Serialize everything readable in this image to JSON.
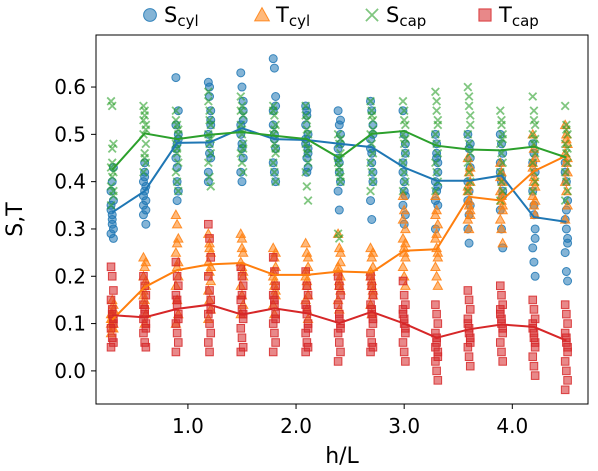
{
  "chart_data": {
    "type": "scatter",
    "xlabel": "h/L",
    "ylabel": "S,T",
    "xlim": [
      0.15,
      4.7
    ],
    "ylim": [
      -0.07,
      0.71
    ],
    "xticks": [
      1.0,
      2.0,
      3.0,
      4.0
    ],
    "xtick_labels": [
      "1.0",
      "2.0",
      "3.0",
      "4.0"
    ],
    "yticks": [
      0.0,
      0.1,
      0.2,
      0.3,
      0.4,
      0.5,
      0.6
    ],
    "ytick_labels": [
      "0.0",
      "0.1",
      "0.2",
      "0.3",
      "0.4",
      "0.5",
      "0.6"
    ],
    "grid": false,
    "legend": "top, outside plot, single row",
    "x": [
      0.3,
      0.6,
      0.9,
      1.2,
      1.5,
      1.8,
      2.1,
      2.4,
      2.7,
      3.0,
      3.3,
      3.6,
      3.9,
      4.2,
      4.5
    ],
    "series": [
      {
        "key": "scyl",
        "legend_main": "S",
        "legend_sub": "cyl",
        "marker": "circle",
        "color": "#1f77b4",
        "mean": [
          0.335,
          0.38,
          0.482,
          0.483,
          0.513,
          0.49,
          0.488,
          0.48,
          0.473,
          0.43,
          0.402,
          0.402,
          0.413,
          0.325,
          0.315
        ],
        "points": [
          [
            0.34,
            0.33,
            0.3,
            0.29,
            0.32,
            0.36,
            0.38,
            0.31,
            0.28,
            0.35,
            0.4,
            0.43
          ],
          [
            0.4,
            0.38,
            0.36,
            0.35,
            0.42,
            0.31,
            0.33,
            0.44,
            0.39,
            0.37,
            0.41,
            0.34
          ],
          [
            0.62,
            0.48,
            0.5,
            0.45,
            0.4,
            0.38,
            0.52,
            0.36,
            0.55,
            0.47,
            0.43,
            0.49
          ],
          [
            0.61,
            0.6,
            0.55,
            0.5,
            0.48,
            0.45,
            0.42,
            0.58,
            0.52,
            0.4,
            0.46,
            0.53
          ],
          [
            0.63,
            0.6,
            0.55,
            0.52,
            0.48,
            0.45,
            0.42,
            0.4,
            0.57,
            0.5,
            0.47,
            0.53
          ],
          [
            0.66,
            0.64,
            0.58,
            0.55,
            0.5,
            0.47,
            0.44,
            0.42,
            0.4,
            0.52,
            0.49,
            0.56
          ],
          [
            0.56,
            0.55,
            0.5,
            0.48,
            0.45,
            0.43,
            0.52,
            0.42,
            0.47,
            0.49,
            0.54,
            0.46
          ],
          [
            0.55,
            0.52,
            0.48,
            0.45,
            0.42,
            0.4,
            0.38,
            0.34,
            0.5,
            0.47,
            0.44,
            0.53
          ],
          [
            0.57,
            0.55,
            0.5,
            0.47,
            0.44,
            0.4,
            0.36,
            0.32,
            0.52,
            0.49,
            0.46,
            0.42
          ],
          [
            0.55,
            0.5,
            0.46,
            0.42,
            0.4,
            0.37,
            0.35,
            0.31,
            0.48,
            0.44,
            0.38,
            0.33
          ],
          [
            0.5,
            0.46,
            0.44,
            0.4,
            0.38,
            0.35,
            0.3,
            0.48,
            0.42,
            0.36,
            0.45,
            0.39
          ],
          [
            0.5,
            0.47,
            0.45,
            0.4,
            0.38,
            0.35,
            0.3,
            0.27,
            0.43,
            0.36,
            0.33,
            0.48
          ],
          [
            0.5,
            0.48,
            0.46,
            0.42,
            0.4,
            0.38,
            0.34,
            0.3,
            0.26,
            0.44,
            0.41,
            0.37
          ],
          [
            0.48,
            0.46,
            0.42,
            0.38,
            0.35,
            0.3,
            0.26,
            0.23,
            0.2,
            0.44,
            0.33,
            0.28
          ],
          [
            0.44,
            0.4,
            0.36,
            0.32,
            0.3,
            0.28,
            0.25,
            0.21,
            0.19,
            0.42,
            0.34,
            0.27
          ]
        ]
      },
      {
        "key": "tcyl",
        "legend_main": "T",
        "legend_sub": "cyl",
        "marker": "triangle",
        "color": "#ff7f0e",
        "mean": [
          0.108,
          0.177,
          0.213,
          0.225,
          0.228,
          0.203,
          0.203,
          0.21,
          0.208,
          0.254,
          0.257,
          0.368,
          0.36,
          0.422,
          0.455
        ],
        "points": [
          [
            0.1,
            0.12,
            0.14,
            0.11,
            0.09,
            0.13,
            0.08,
            0.15,
            0.1,
            0.12,
            0.11,
            0.09
          ],
          [
            0.24,
            0.22,
            0.18,
            0.16,
            0.14,
            0.12,
            0.2,
            0.1,
            0.23,
            0.17,
            0.15,
            0.19
          ],
          [
            0.33,
            0.31,
            0.28,
            0.25,
            0.22,
            0.2,
            0.18,
            0.15,
            0.12,
            0.1,
            0.27,
            0.23
          ],
          [
            0.29,
            0.27,
            0.25,
            0.23,
            0.21,
            0.19,
            0.17,
            0.15,
            0.13,
            0.11,
            0.26,
            0.22
          ],
          [
            0.29,
            0.28,
            0.25,
            0.23,
            0.22,
            0.2,
            0.18,
            0.16,
            0.14,
            0.12,
            0.26,
            0.21
          ],
          [
            0.26,
            0.24,
            0.22,
            0.2,
            0.18,
            0.16,
            0.14,
            0.12,
            0.25,
            0.21,
            0.19,
            0.17
          ],
          [
            0.27,
            0.25,
            0.22,
            0.2,
            0.18,
            0.16,
            0.15,
            0.13,
            0.24,
            0.21,
            0.19,
            0.11
          ],
          [
            0.29,
            0.26,
            0.23,
            0.21,
            0.19,
            0.17,
            0.15,
            0.13,
            0.25,
            0.22,
            0.18,
            0.2
          ],
          [
            0.26,
            0.24,
            0.22,
            0.2,
            0.18,
            0.16,
            0.14,
            0.12,
            0.25,
            0.21,
            0.19,
            0.17
          ],
          [
            0.37,
            0.34,
            0.3,
            0.28,
            0.26,
            0.24,
            0.22,
            0.2,
            0.18,
            0.32,
            0.25,
            0.27
          ],
          [
            0.37,
            0.34,
            0.31,
            0.28,
            0.26,
            0.24,
            0.22,
            0.2,
            0.18,
            0.33,
            0.29,
            0.25
          ],
          [
            0.45,
            0.42,
            0.4,
            0.38,
            0.36,
            0.34,
            0.32,
            0.3,
            0.43,
            0.39,
            0.35,
            0.33
          ],
          [
            0.44,
            0.42,
            0.4,
            0.38,
            0.36,
            0.34,
            0.32,
            0.3,
            0.27,
            0.41,
            0.37,
            0.35
          ],
          [
            0.5,
            0.47,
            0.45,
            0.43,
            0.41,
            0.39,
            0.37,
            0.35,
            0.33,
            0.44,
            0.4,
            0.36
          ],
          [
            0.52,
            0.5,
            0.48,
            0.46,
            0.44,
            0.42,
            0.4,
            0.38,
            0.35,
            0.32,
            0.49,
            0.45
          ]
        ]
      },
      {
        "key": "scap",
        "legend_main": "S",
        "legend_sub": "cap",
        "marker": "x",
        "color": "#2ca02c",
        "mean": [
          0.425,
          0.502,
          0.49,
          0.499,
          0.505,
          0.497,
          0.49,
          0.45,
          0.501,
          0.507,
          0.476,
          0.468,
          0.466,
          0.474,
          0.451
        ],
        "points": [
          [
            0.57,
            0.56,
            0.48,
            0.43,
            0.41,
            0.38,
            0.35,
            0.47,
            0.42,
            0.39,
            0.44,
            0.37
          ],
          [
            0.56,
            0.55,
            0.52,
            0.5,
            0.46,
            0.44,
            0.42,
            0.54,
            0.48,
            0.53,
            0.45,
            0.51
          ],
          [
            0.55,
            0.52,
            0.5,
            0.48,
            0.46,
            0.44,
            0.42,
            0.4,
            0.38,
            0.53,
            0.47,
            0.51
          ],
          [
            0.59,
            0.55,
            0.52,
            0.5,
            0.48,
            0.46,
            0.44,
            0.41,
            0.39,
            0.57,
            0.53,
            0.49
          ],
          [
            0.58,
            0.56,
            0.54,
            0.52,
            0.5,
            0.48,
            0.46,
            0.44,
            0.42,
            0.55,
            0.51,
            0.47
          ],
          [
            0.56,
            0.54,
            0.52,
            0.5,
            0.48,
            0.46,
            0.44,
            0.42,
            0.4,
            0.55,
            0.51,
            0.47
          ],
          [
            0.56,
            0.53,
            0.5,
            0.48,
            0.46,
            0.44,
            0.42,
            0.39,
            0.36,
            0.54,
            0.51,
            0.47
          ],
          [
            0.5,
            0.48,
            0.46,
            0.44,
            0.42,
            0.4,
            0.29,
            0.28,
            0.49,
            0.45,
            0.43,
            0.41
          ],
          [
            0.57,
            0.55,
            0.53,
            0.5,
            0.48,
            0.46,
            0.44,
            0.42,
            0.4,
            0.38,
            0.54,
            0.51
          ],
          [
            0.57,
            0.55,
            0.52,
            0.5,
            0.48,
            0.46,
            0.44,
            0.42,
            0.4,
            0.38,
            0.53,
            0.49
          ],
          [
            0.59,
            0.55,
            0.52,
            0.5,
            0.48,
            0.46,
            0.44,
            0.42,
            0.4,
            0.38,
            0.57,
            0.53
          ],
          [
            0.6,
            0.56,
            0.52,
            0.5,
            0.48,
            0.46,
            0.44,
            0.42,
            0.4,
            0.38,
            0.58,
            0.54
          ],
          [
            0.55,
            0.52,
            0.5,
            0.48,
            0.46,
            0.44,
            0.42,
            0.4,
            0.38,
            0.36,
            0.53,
            0.49
          ],
          [
            0.58,
            0.55,
            0.52,
            0.5,
            0.48,
            0.46,
            0.44,
            0.42,
            0.4,
            0.38,
            0.53,
            0.49
          ],
          [
            0.56,
            0.52,
            0.5,
            0.48,
            0.46,
            0.44,
            0.42,
            0.4,
            0.38,
            0.36,
            0.51,
            0.47
          ]
        ]
      },
      {
        "key": "tcap",
        "legend_main": "T",
        "legend_sub": "cap",
        "marker": "square",
        "color": "#d62728",
        "mean": [
          0.118,
          0.113,
          0.131,
          0.14,
          0.119,
          0.132,
          0.122,
          0.101,
          0.125,
          0.1,
          0.07,
          0.088,
          0.098,
          0.093,
          0.064
        ],
        "points": [
          [
            0.22,
            0.2,
            0.17,
            0.15,
            0.13,
            0.11,
            0.09,
            0.07,
            0.06,
            0.05,
            0.12,
            0.1
          ],
          [
            0.2,
            0.18,
            0.16,
            0.14,
            0.12,
            0.1,
            0.08,
            0.06,
            0.05,
            0.11,
            0.13,
            0.09
          ],
          [
            0.23,
            0.2,
            0.18,
            0.16,
            0.14,
            0.12,
            0.1,
            0.08,
            0.06,
            0.04,
            0.15,
            0.11
          ],
          [
            0.31,
            0.28,
            0.24,
            0.2,
            0.17,
            0.15,
            0.12,
            0.1,
            0.08,
            0.06,
            0.04,
            0.13
          ],
          [
            0.22,
            0.2,
            0.18,
            0.15,
            0.13,
            0.11,
            0.09,
            0.07,
            0.05,
            0.04,
            0.16,
            0.12
          ],
          [
            0.24,
            0.21,
            0.18,
            0.16,
            0.14,
            0.12,
            0.1,
            0.08,
            0.06,
            0.04,
            0.15,
            0.11
          ],
          [
            0.21,
            0.18,
            0.16,
            0.14,
            0.12,
            0.1,
            0.08,
            0.06,
            0.05,
            0.04,
            0.13,
            0.09
          ],
          [
            0.2,
            0.18,
            0.16,
            0.14,
            0.12,
            0.1,
            0.08,
            0.06,
            0.04,
            0.02,
            0.11,
            0.09
          ],
          [
            0.2,
            0.18,
            0.16,
            0.14,
            0.12,
            0.1,
            0.08,
            0.06,
            0.05,
            0.04,
            0.13,
            0.11
          ],
          [
            0.19,
            0.16,
            0.14,
            0.12,
            0.1,
            0.08,
            0.06,
            0.04,
            0.02,
            0.13,
            0.11,
            0.09
          ],
          [
            0.14,
            0.12,
            0.1,
            0.08,
            0.06,
            0.04,
            0.02,
            0.0,
            -0.02,
            0.05,
            0.07,
            0.03
          ],
          [
            0.17,
            0.15,
            0.13,
            0.11,
            0.09,
            0.07,
            0.05,
            0.03,
            0.01,
            0.1,
            0.08,
            0.06
          ],
          [
            0.18,
            0.16,
            0.14,
            0.12,
            0.1,
            0.08,
            0.06,
            0.04,
            0.02,
            0.13,
            0.11,
            0.09
          ],
          [
            0.15,
            0.13,
            0.11,
            0.09,
            0.07,
            0.05,
            0.03,
            0.01,
            -0.01,
            0.1,
            0.08,
            0.06
          ],
          [
            0.14,
            0.12,
            0.1,
            0.08,
            0.06,
            0.04,
            0.02,
            0.0,
            -0.02,
            -0.04,
            0.07,
            0.05
          ]
        ]
      }
    ]
  }
}
